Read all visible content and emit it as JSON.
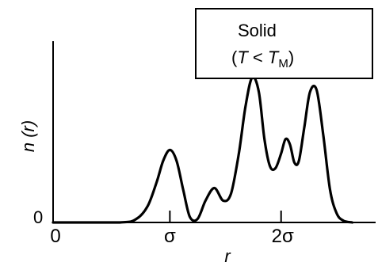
{
  "chart_data": {
    "type": "line",
    "title": "",
    "xlabel": "r",
    "ylabel": "n (r)",
    "xlim": [
      -0.05,
      2.85
    ],
    "ylim": [
      0,
      1.0
    ],
    "x_ticks": [
      {
        "value": 1.0,
        "label": "σ"
      },
      {
        "value": 2.0,
        "label": "2σ"
      }
    ],
    "x_origin_label": "0",
    "y_origin_label": "0",
    "annotation": {
      "line1": "Solid",
      "line2_open": "(",
      "line2_T": "T",
      "line2_lt": " < ",
      "line2_TM": "T",
      "line2_sub": "M",
      "line2_close": ")"
    },
    "series": [
      {
        "x": [
          0.55,
          0.7,
          0.8,
          0.88,
          0.94,
          1.0,
          1.06,
          1.12,
          1.18,
          1.25,
          1.32,
          1.4,
          1.48,
          1.55,
          1.62,
          1.68,
          1.74,
          1.8,
          1.85,
          1.9,
          1.95,
          2.0,
          2.04,
          2.08,
          2.12,
          2.16,
          2.21,
          2.26,
          2.32,
          2.38,
          2.44,
          2.5,
          2.56,
          2.64
        ],
        "y": [
          0.0,
          0.02,
          0.09,
          0.22,
          0.34,
          0.4,
          0.34,
          0.18,
          0.03,
          0.02,
          0.12,
          0.19,
          0.12,
          0.16,
          0.38,
          0.64,
          0.8,
          0.72,
          0.46,
          0.31,
          0.3,
          0.38,
          0.46,
          0.43,
          0.33,
          0.34,
          0.53,
          0.72,
          0.73,
          0.48,
          0.18,
          0.05,
          0.01,
          0.0
        ]
      }
    ]
  }
}
